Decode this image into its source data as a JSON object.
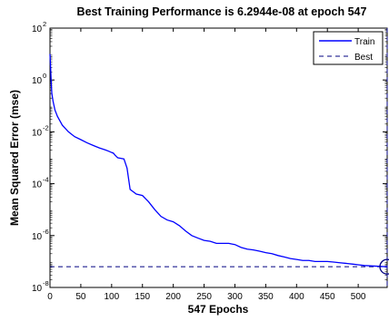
{
  "chart_data": {
    "type": "line",
    "title": "Best Training Performance is 6.2944e-08 at epoch 547",
    "xlabel": "547 Epochs",
    "ylabel": "Mean Squared Error  (mse)",
    "xlim": [
      0,
      547
    ],
    "ylim": [
      1e-08,
      100
    ],
    "yscale": "log",
    "x_ticks": [
      0,
      50,
      100,
      150,
      200,
      250,
      300,
      350,
      400,
      450,
      500
    ],
    "y_ticks": [
      {
        "base": "10",
        "exp": "-8",
        "value": 1e-08
      },
      {
        "base": "10",
        "exp": "-6",
        "value": 1e-06
      },
      {
        "base": "10",
        "exp": "-4",
        "value": 0.0001
      },
      {
        "base": "10",
        "exp": "-2",
        "value": 0.01
      },
      {
        "base": "10",
        "exp": "0",
        "value": 1
      },
      {
        "base": "10",
        "exp": "2",
        "value": 100
      }
    ],
    "grid": false,
    "legend_position": "top-right",
    "series": [
      {
        "name": "Train",
        "color": "#0000ff",
        "style": "solid",
        "x": [
          0,
          1,
          2,
          3,
          5,
          8,
          12,
          20,
          30,
          40,
          50,
          60,
          70,
          80,
          90,
          95,
          100,
          103,
          105,
          108,
          110,
          115,
          120,
          125,
          130,
          140,
          150,
          160,
          170,
          180,
          190,
          200,
          210,
          220,
          230,
          240,
          250,
          260,
          270,
          280,
          290,
          300,
          310,
          320,
          330,
          340,
          350,
          360,
          370,
          380,
          390,
          400,
          410,
          420,
          430,
          440,
          450,
          460,
          470,
          480,
          490,
          500,
          510,
          520,
          530,
          540,
          547
        ],
        "y": [
          10,
          3,
          0.8,
          0.3,
          0.15,
          0.07,
          0.04,
          0.018,
          0.01,
          0.0065,
          0.005,
          0.0038,
          0.003,
          0.0024,
          0.002,
          0.0018,
          0.0016,
          0.0015,
          0.0013,
          0.0011,
          0.001,
          0.00095,
          0.0009,
          0.0004,
          6e-05,
          4e-05,
          3.5e-05,
          2e-05,
          1e-05,
          5.5e-06,
          4e-06,
          3.4e-06,
          2.4e-06,
          1.5e-06,
          1e-06,
          8e-07,
          6.5e-07,
          6e-07,
          5e-07,
          5e-07,
          5e-07,
          4.5e-07,
          3.5e-07,
          3e-07,
          2.8e-07,
          2.5e-07,
          2.2e-07,
          2e-07,
          1.7e-07,
          1.5e-07,
          1.3e-07,
          1.2e-07,
          1.1e-07,
          1.1e-07,
          1e-07,
          1e-07,
          1e-07,
          9.5e-08,
          9e-08,
          8.5e-08,
          8e-08,
          7.5e-08,
          7e-08,
          6.8e-08,
          6.6e-08,
          6.4e-08,
          6.3e-08
        ]
      },
      {
        "name": "Best",
        "color": "#000080",
        "style": "dashed",
        "y_const": 6.2944e-08,
        "x_const": 547
      }
    ],
    "best_marker": {
      "x": 547,
      "y": 6.2944e-08
    }
  }
}
